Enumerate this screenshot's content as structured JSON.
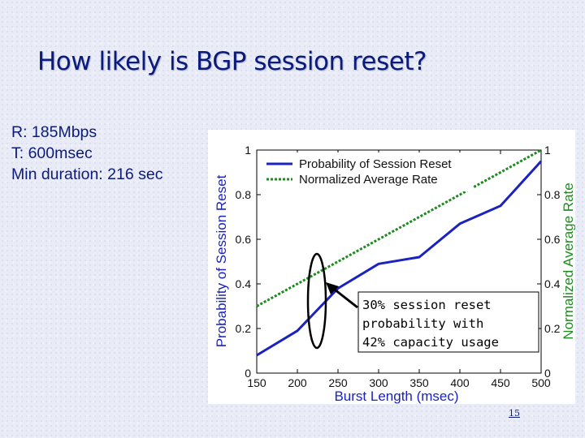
{
  "slide": {
    "title": "How likely is BGP session reset?",
    "params": [
      "R: 185Mbps",
      "T: 600msec",
      "Min duration: 216 sec"
    ],
    "page_number": "15"
  },
  "chart_data": {
    "type": "line",
    "xlabel": "Burst Length (msec)",
    "ylabel": "Probability of Session Reset",
    "y2label": "Normalized Average Rate",
    "xlim": [
      150,
      500
    ],
    "ylim": [
      0,
      1
    ],
    "y2lim": [
      0,
      1
    ],
    "x_ticks": [
      "150",
      "200",
      "250",
      "300",
      "350",
      "400",
      "450",
      "500"
    ],
    "y_ticks": [
      "0",
      "0.2",
      "0.4",
      "0.6",
      "0.8",
      "1"
    ],
    "y2_ticks": [
      "0",
      "0.2",
      "0.4",
      "0.6",
      "0.8",
      "1"
    ],
    "legend_position": "top",
    "series": [
      {
        "name": "Probability of Session Reset",
        "axis": "left",
        "color": "#1a22c0",
        "style": "solid",
        "x": [
          150,
          200,
          250,
          300,
          350,
          400,
          450,
          500
        ],
        "values": [
          0.08,
          0.19,
          0.38,
          0.49,
          0.52,
          0.67,
          0.75,
          0.95
        ]
      },
      {
        "name": "Normalized Average Rate",
        "axis": "right",
        "color": "#1f8a1f",
        "style": "dotted",
        "x": [
          150,
          500
        ],
        "values": [
          0.3,
          1.0
        ]
      }
    ],
    "annotation": {
      "lines": [
        "30% session reset",
        "probability with",
        "42% capacity usage"
      ]
    }
  }
}
